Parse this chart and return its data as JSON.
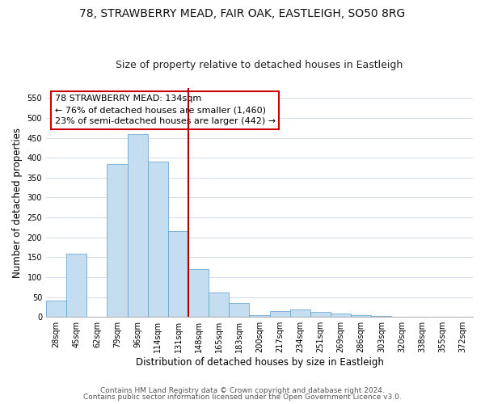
{
  "title": "78, STRAWBERRY MEAD, FAIR OAK, EASTLEIGH, SO50 8RG",
  "subtitle": "Size of property relative to detached houses in Eastleigh",
  "xlabel": "Distribution of detached houses by size in Eastleigh",
  "ylabel": "Number of detached properties",
  "bin_labels": [
    "28sqm",
    "45sqm",
    "62sqm",
    "79sqm",
    "96sqm",
    "114sqm",
    "131sqm",
    "148sqm",
    "165sqm",
    "183sqm",
    "200sqm",
    "217sqm",
    "234sqm",
    "251sqm",
    "269sqm",
    "286sqm",
    "303sqm",
    "320sqm",
    "338sqm",
    "355sqm",
    "372sqm"
  ],
  "bar_values": [
    42,
    158,
    0,
    385,
    460,
    390,
    215,
    120,
    62,
    35,
    5,
    15,
    18,
    12,
    8,
    4,
    2,
    1,
    0,
    0,
    0
  ],
  "bar_color": "#c5ddf0",
  "bar_edge_color": "#5b9ec9",
  "vline_x_index": 6,
  "vline_color": "#aa0000",
  "annotation_line1": "78 STRAWBERRY MEAD: 134sqm",
  "annotation_line2": "← 76% of detached houses are smaller (1,460)",
  "annotation_line3": "23% of semi-detached houses are larger (442) →",
  "annotation_box_color": "#ffffff",
  "annotation_box_edgecolor": "#cc0000",
  "ylim": [
    0,
    575
  ],
  "yticks": [
    0,
    50,
    100,
    150,
    200,
    250,
    300,
    350,
    400,
    450,
    500,
    550
  ],
  "footnote_line1": "Contains HM Land Registry data © Crown copyright and database right 2024.",
  "footnote_line2": "Contains public sector information licensed under the Open Government Licence v3.0.",
  "bg_color": "#ffffff",
  "grid_color": "#ccd8ec",
  "title_fontsize": 10,
  "subtitle_fontsize": 9,
  "axis_label_fontsize": 8.5,
  "tick_fontsize": 7,
  "annotation_fontsize": 8,
  "footnote_fontsize": 6.5
}
